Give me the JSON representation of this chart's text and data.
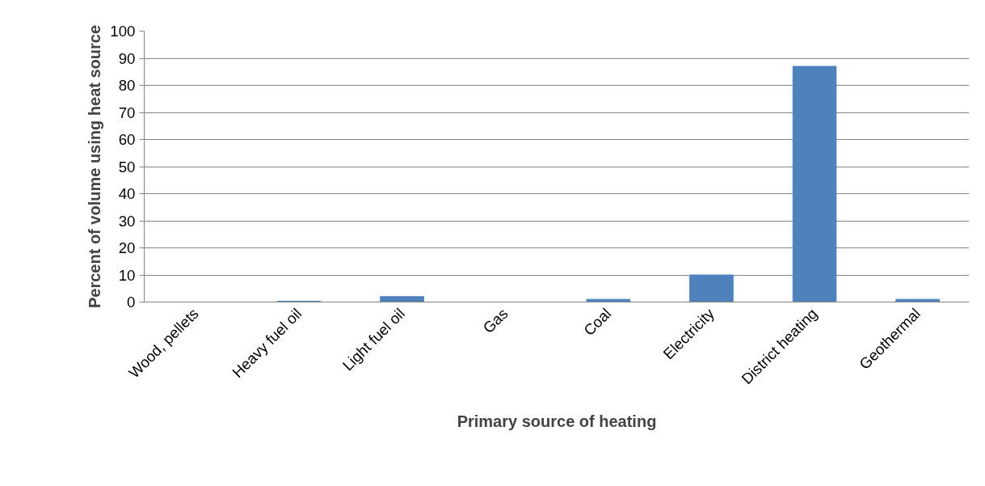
{
  "chart_data": {
    "type": "bar",
    "xlabel": "Primary source of heating",
    "ylabel": "Percent of volume using heat source",
    "categories": [
      "Wood, pellets",
      "Heavy fuel oil",
      "Light fuel oil",
      "Gas",
      "Coal",
      "Electricity",
      "District heating",
      "Geothermal"
    ],
    "values": [
      0,
      0.3,
      2,
      0,
      1,
      10,
      87,
      1
    ],
    "color": "#4f81bd",
    "ylim": [
      0,
      100
    ],
    "yticks": [
      0,
      10,
      20,
      30,
      40,
      50,
      60,
      70,
      80,
      90,
      100
    ],
    "grid": "y"
  }
}
